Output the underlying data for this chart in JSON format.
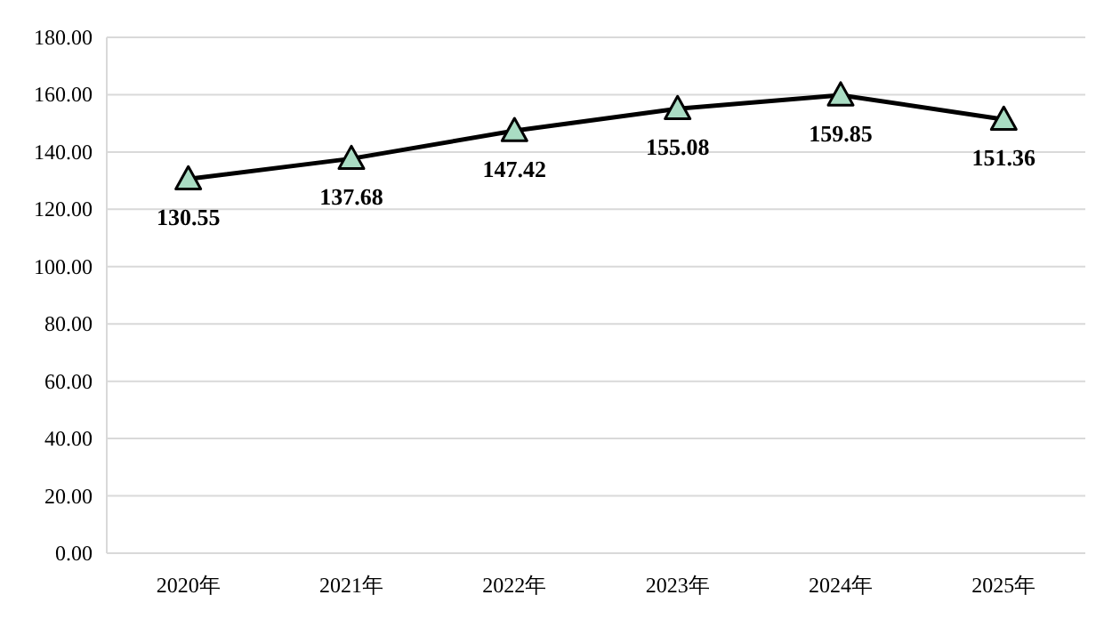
{
  "chart_data": {
    "type": "line",
    "categories": [
      "2020年",
      "2021年",
      "2022年",
      "2023年",
      "2024年",
      "2025年"
    ],
    "series": [
      {
        "color": "#000000",
        "colors": [
          "#a9dcc3",
          "#a9dcc3",
          "#a9dcc3",
          "#a9dcc3",
          "#a9dcc3",
          "#a9dcc3"
        ],
        "values": [
          130.55,
          137.68,
          147.42,
          155.08,
          159.85,
          151.36
        ]
      }
    ],
    "ylim": [
      0,
      180
    ],
    "yticks": [
      {
        "value": 0,
        "label": "0.00"
      },
      {
        "value": 20,
        "label": "20.00"
      },
      {
        "value": 40,
        "label": "40.00"
      },
      {
        "value": 60,
        "label": "60.00"
      },
      {
        "value": 80,
        "label": "80.00"
      },
      {
        "value": 100,
        "label": "100.00"
      },
      {
        "value": 120,
        "label": "120.00"
      },
      {
        "value": 140,
        "label": "140.00"
      },
      {
        "value": 160,
        "label": "160.00"
      },
      {
        "value": 180,
        "label": "180.00"
      }
    ],
    "grid": "y",
    "marker": "triangle",
    "line_style": "solid",
    "data_labels": true
  }
}
